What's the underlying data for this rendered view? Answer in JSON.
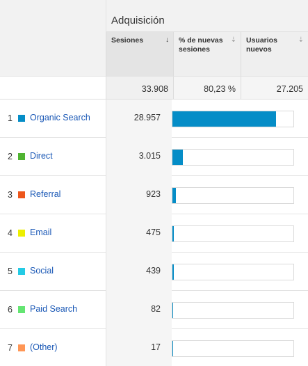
{
  "group_title": "Adquisición",
  "columns": [
    {
      "label": "Sesiones",
      "sort": "↓",
      "active": true
    },
    {
      "label": "% de nuevas sesiones",
      "sort": "⇣",
      "active": false
    },
    {
      "label": "Usuarios nuevos",
      "sort": "⇣",
      "active": false
    }
  ],
  "totals": {
    "sessions": "33.908",
    "new_sessions_pct": "80,23 %",
    "new_users": "27.205"
  },
  "rows": [
    {
      "num": "1",
      "name": "Organic Search",
      "color": "#058dc7",
      "sessions": "28.957",
      "share": 0.854
    },
    {
      "num": "2",
      "name": "Direct",
      "color": "#50b432",
      "sessions": "3.015",
      "share": 0.0889
    },
    {
      "num": "3",
      "name": "Referral",
      "color": "#ed561b",
      "sessions": "923",
      "share": 0.0272
    },
    {
      "num": "4",
      "name": "Email",
      "color": "#edef00",
      "sessions": "475",
      "share": 0.014
    },
    {
      "num": "5",
      "name": "Social",
      "color": "#24cbe5",
      "sessions": "439",
      "share": 0.0129
    },
    {
      "num": "6",
      "name": "Paid Search",
      "color": "#64e572",
      "sessions": "82",
      "share": 0.0024
    },
    {
      "num": "7",
      "name": "(Other)",
      "color": "#ff9655",
      "sessions": "17",
      "share": 0.0005
    }
  ]
}
